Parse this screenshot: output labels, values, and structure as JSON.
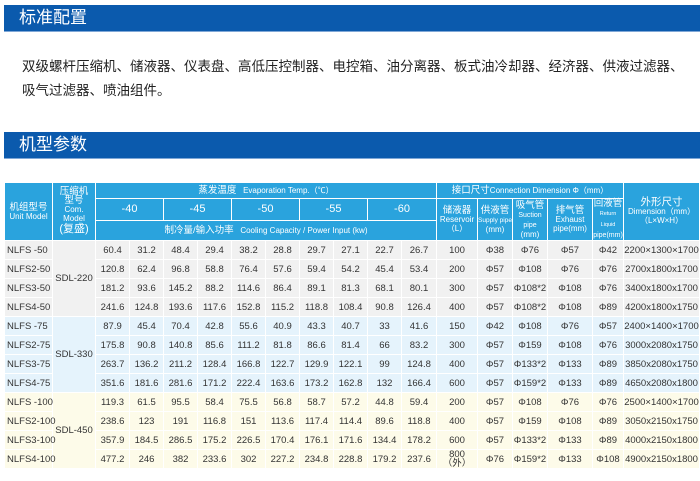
{
  "sections": {
    "standard_config_title": "标准配置",
    "standard_config_text": "双级螺杆压缩机、储液器、仪表盘、高低压控制器、电控箱、油分离器、板式油冷却器、经济器、供液过滤器、吸气过滤器、喷油组件。",
    "model_params_title": "机型参数"
  },
  "table": {
    "headers": {
      "unit_model_cn": "机组型号",
      "unit_model_en": "Unit Model",
      "com_model_cn": "压缩机\n型号",
      "com_model_en": "Com. Model",
      "com_model_note": "(复盛)",
      "evap_cn": "蒸发温度",
      "evap_en": "Evaporation Temp.（℃）",
      "temps": [
        "-40",
        "-45",
        "-50",
        "-55",
        "-60"
      ],
      "cap_cn": "制冷量/输入功率",
      "cap_en": "Cooling Capacity / Power Input (kw)",
      "conn_cn": "接口尺寸",
      "conn_en": "Connection Dimension Φ（mm）",
      "reservoir_cn": "储液器",
      "reservoir_en": "Reservoir",
      "reservoir_unit": "（L）",
      "supply_cn": "供液管",
      "supply_en": "Supply pipe",
      "supply_unit": "(mm)",
      "suction_cn": "吸气管",
      "suction_en": "Suction pipe",
      "suction_unit": "(mm)",
      "exhaust_cn": "排气管",
      "exhaust_en": "Exhaust",
      "exhaust_unit": "pipe(mm)",
      "return_cn": "回液管",
      "return_en": "Return Liquid",
      "return_unit": "pipe(mm)",
      "dim_cn": "外形尺寸",
      "dim_en": "Dimension（mm）",
      "dim_unit": "（L×W×H）"
    },
    "groups": [
      {
        "compressor": "SDL-220",
        "rows": [
          {
            "model": "NLFS -50",
            "values": [
              "60.4",
              "31.2",
              "48.4",
              "29.4",
              "38.2",
              "28.8",
              "29.7",
              "27.1",
              "22.7",
              "26.7"
            ],
            "reservoir": "100",
            "supply": "Φ38",
            "suction": "Φ76",
            "exhaust": "Φ57",
            "return": "Φ42",
            "dimension": "2200×1300×1700"
          },
          {
            "model": "NLFS2-50",
            "values": [
              "120.8",
              "62.4",
              "96.8",
              "58.8",
              "76.4",
              "57.6",
              "59.4",
              "54.2",
              "45.4",
              "53.4"
            ],
            "reservoir": "200",
            "supply": "Φ57",
            "suction": "Φ108",
            "exhaust": "Φ76",
            "return": "Φ76",
            "dimension": "2700x1800x1700"
          },
          {
            "model": "NLFS3-50",
            "values": [
              "181.2",
              "93.6",
              "145.2",
              "88.2",
              "114.6",
              "86.4",
              "89.1",
              "81.3",
              "68.1",
              "80.1"
            ],
            "reservoir": "300",
            "supply": "Φ57",
            "suction": "Φ108*2",
            "exhaust": "Φ108",
            "return": "Φ76",
            "dimension": "3400x1800x1700"
          },
          {
            "model": "NLFS4-50",
            "values": [
              "241.6",
              "124.8",
              "193.6",
              "117.6",
              "152.8",
              "115.2",
              "118.8",
              "108.4",
              "90.8",
              "126.4"
            ],
            "reservoir": "400",
            "supply": "Φ57",
            "suction": "Φ108*2",
            "exhaust": "Φ108",
            "return": "Φ89",
            "dimension": "4200x1800x1750"
          }
        ]
      },
      {
        "compressor": "SDL-330",
        "rows": [
          {
            "model": "NLFS -75",
            "values": [
              "87.9",
              "45.4",
              "70.4",
              "42.8",
              "55.6",
              "40.9",
              "43.3",
              "40.7",
              "33",
              "41.6"
            ],
            "reservoir": "150",
            "supply": "Φ42",
            "suction": "Φ108",
            "exhaust": "Φ76",
            "return": "Φ57",
            "dimension": "2400×1400×1700"
          },
          {
            "model": "NLFS2-75",
            "values": [
              "175.8",
              "90.8",
              "140.8",
              "85.6",
              "111.2",
              "81.8",
              "86.6",
              "81.4",
              "66",
              "83.2"
            ],
            "reservoir": "300",
            "supply": "Φ57",
            "suction": "Φ159",
            "exhaust": "Φ108",
            "return": "Φ76",
            "dimension": "3000x2080x1750"
          },
          {
            "model": "NLFS3-75",
            "values": [
              "263.7",
              "136.2",
              "211.2",
              "128.4",
              "166.8",
              "122.7",
              "129.9",
              "122.1",
              "99",
              "124.8"
            ],
            "reservoir": "400",
            "supply": "Φ57",
            "suction": "Φ133*2",
            "exhaust": "Φ133",
            "return": "Φ89",
            "dimension": "3850x2080x1750"
          },
          {
            "model": "NLFS4-75",
            "values": [
              "351.6",
              "181.6",
              "281.6",
              "171.2",
              "222.4",
              "163.6",
              "173.2",
              "162.8",
              "132",
              "166.4"
            ],
            "reservoir": "600",
            "supply": "Φ57",
            "suction": "Φ159*2",
            "exhaust": "Φ133",
            "return": "Φ89",
            "dimension": "4650x2080x1800"
          }
        ]
      },
      {
        "compressor": "SDL-450",
        "rows": [
          {
            "model": "NLFS -100",
            "values": [
              "119.3",
              "61.5",
              "95.5",
              "58.4",
              "75.5",
              "56.8",
              "58.7",
              "57.2",
              "44.8",
              "59.4"
            ],
            "reservoir": "200",
            "supply": "Φ57",
            "suction": "Φ108",
            "exhaust": "Φ76",
            "return": "Φ76",
            "dimension": "2500×1400×1700"
          },
          {
            "model": "NLFS2-100",
            "values": [
              "238.6",
              "123",
              "191",
              "116.8",
              "151",
              "113.6",
              "117.4",
              "114.4",
              "89.6",
              "118.8"
            ],
            "reservoir": "400",
            "supply": "Φ57",
            "suction": "Φ159",
            "exhaust": "Φ108",
            "return": "Φ89",
            "dimension": "3050x2150x1750"
          },
          {
            "model": "NLFS3-100",
            "values": [
              "357.9",
              "184.5",
              "286.5",
              "175.2",
              "226.5",
              "170.4",
              "176.1",
              "171.6",
              "134.4",
              "178.2"
            ],
            "reservoir": "600",
            "supply": "Φ57",
            "suction": "Φ133*2",
            "exhaust": "Φ133",
            "return": "Φ89",
            "dimension": "4000x2150x1800"
          },
          {
            "model": "NLFS4-100",
            "values": [
              "477.2",
              "246",
              "382",
              "233.6",
              "302",
              "227.2",
              "234.8",
              "228.8",
              "179.2",
              "237.6"
            ],
            "reservoir": "800\n（外）",
            "supply": "Φ76",
            "suction": "Φ159*2",
            "exhaust": "Φ133",
            "return": "Φ108",
            "dimension": "4900x2150x1800"
          }
        ]
      }
    ]
  },
  "colors": {
    "banner": "#0b5aad",
    "header": "#2aa3dd",
    "group1": "#f1f1f1",
    "group2": "#e5f3fc",
    "group3": "#fdfbe9"
  }
}
